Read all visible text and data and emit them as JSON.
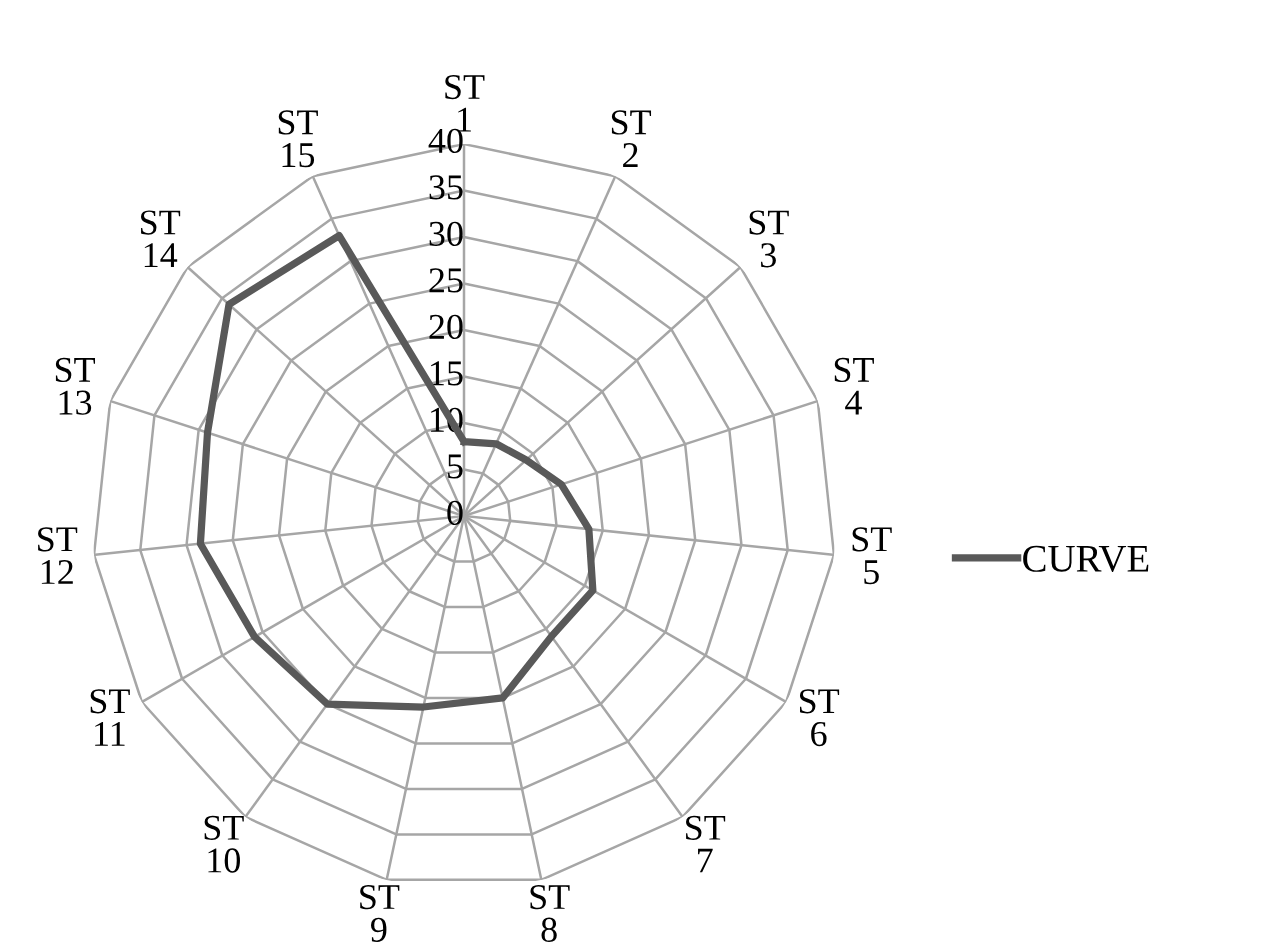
{
  "chart_data": {
    "type": "radar",
    "categories": [
      "ST\n1",
      "ST\n2",
      "ST\n3",
      "ST\n4",
      "ST\n5",
      "ST\n6",
      "ST\n7",
      "ST\n8",
      "ST\n9",
      "ST\n10",
      "ST\n11",
      "ST\n12",
      "ST\n13",
      "ST\n14",
      "ST\n15"
    ],
    "series": [
      {
        "name": "CURVE",
        "color": "#595959",
        "values": [
          8,
          8.5,
          9,
          11,
          13.5,
          16,
          16,
          20,
          21,
          25,
          26,
          28.5,
          29,
          34,
          33
        ]
      }
    ],
    "ylim": [
      0,
      40
    ],
    "yticks": [
      0,
      5,
      10,
      15,
      20,
      25,
      30,
      35,
      40
    ],
    "grid": true,
    "legend": "right"
  }
}
